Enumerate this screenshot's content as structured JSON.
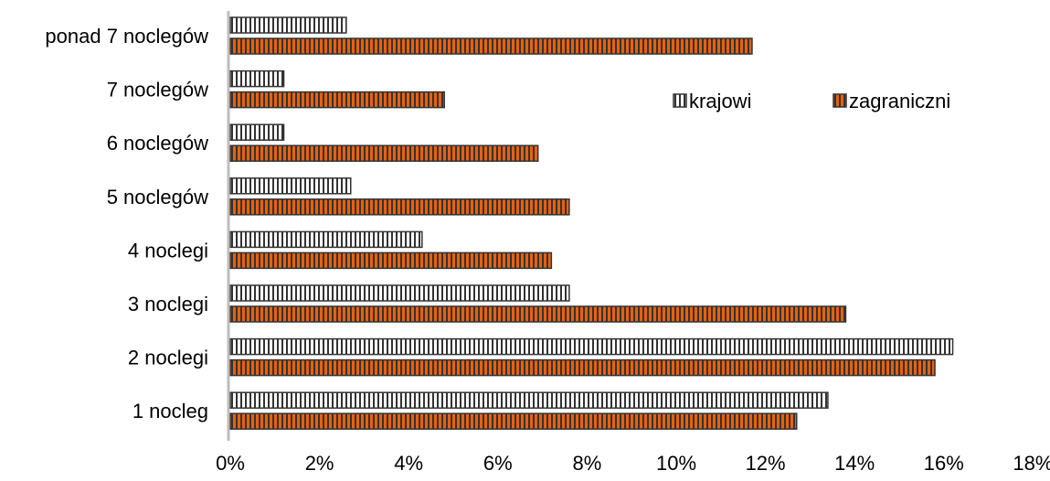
{
  "chart_data": {
    "type": "bar",
    "orientation": "horizontal",
    "categories": [
      "ponad 7 noclegów",
      "7 noclegów",
      "6 noclegów",
      "5 noclegów",
      "4 noclegi",
      "3 noclegi",
      "2 noclegi",
      "1 nocleg"
    ],
    "series": [
      {
        "name": "krajowi",
        "values": [
          2.6,
          1.2,
          1.2,
          2.7,
          4.3,
          7.6,
          16.2,
          13.4
        ],
        "color": "#ffffff",
        "stripe_color": "#333333"
      },
      {
        "name": "zagraniczni",
        "values": [
          11.7,
          4.8,
          6.9,
          7.6,
          7.2,
          13.8,
          15.8,
          12.7
        ],
        "color": "#e8620c",
        "stripe_color": "#333333"
      }
    ],
    "xlim": [
      0,
      18
    ],
    "x_ticks": [
      0,
      2,
      4,
      6,
      8,
      10,
      12,
      14,
      16,
      18
    ],
    "x_tick_labels": [
      "0%",
      "2%",
      "4%",
      "6%",
      "8%",
      "10%",
      "12%",
      "14%",
      "16%",
      "18%"
    ],
    "grid": false,
    "legend_position": "top-right",
    "title": "",
    "xlabel": "",
    "ylabel": ""
  }
}
